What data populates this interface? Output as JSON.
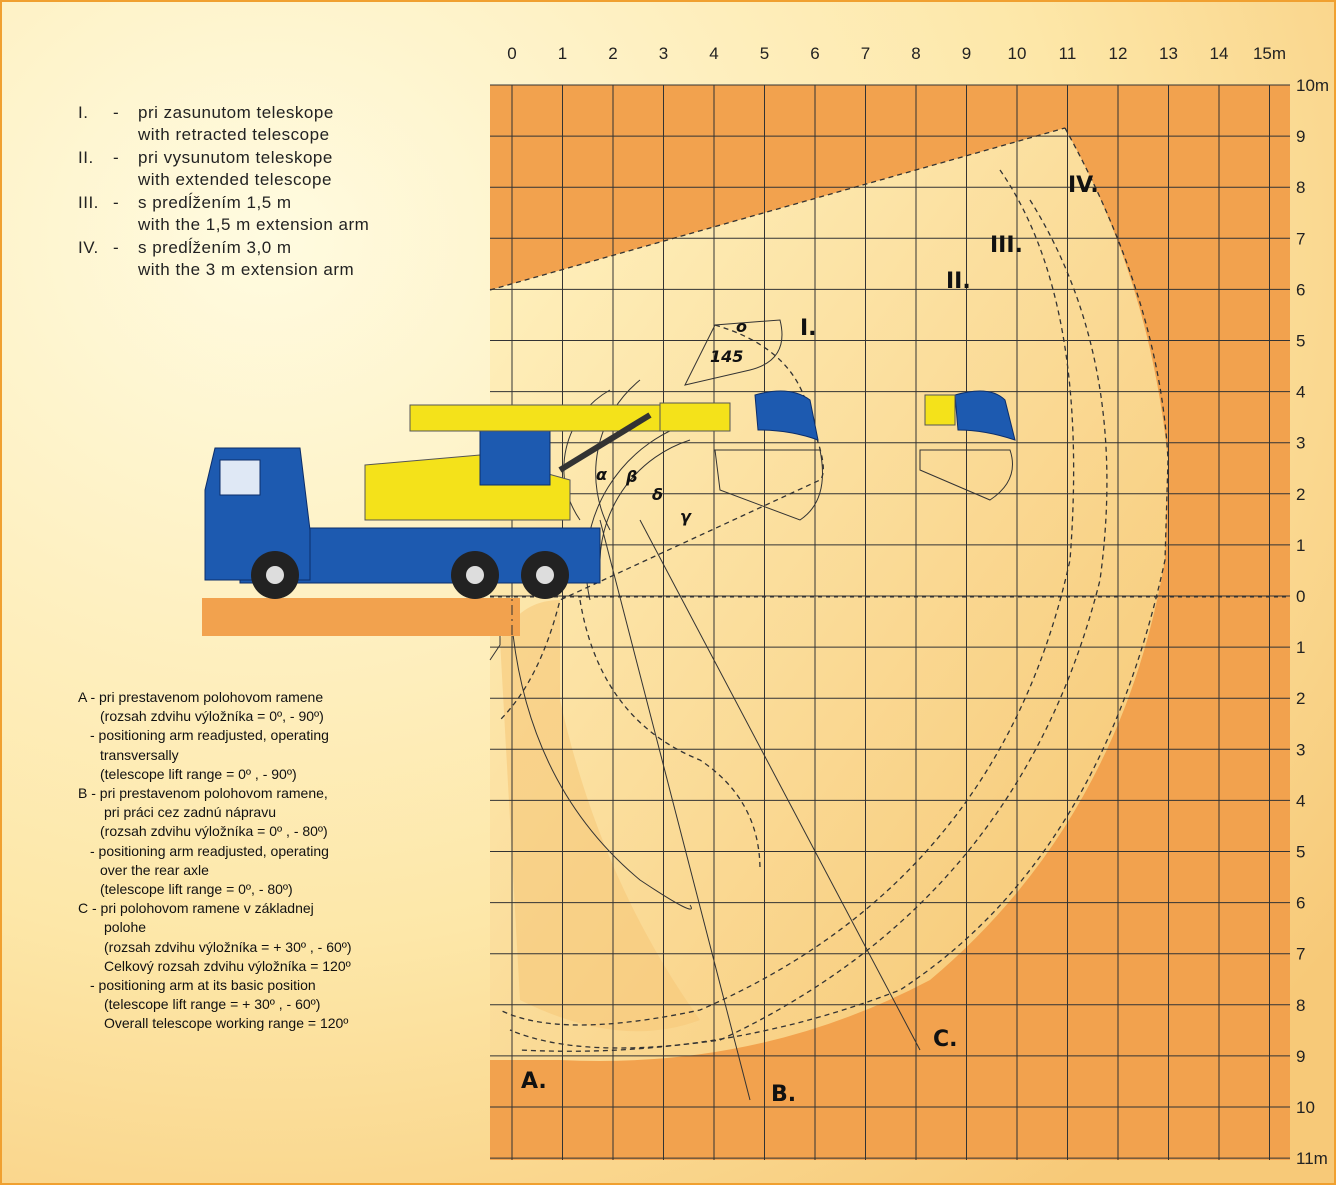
{
  "legend": [
    {
      "num": "I.",
      "sk": "pri zasunutom teleskope",
      "en": "with retracted telescope"
    },
    {
      "num": "II.",
      "sk": "pri vysunutom teleskope",
      "en": "with extended telescope"
    },
    {
      "num": "III.",
      "sk": "s predĺžením 1,5 m",
      "en": "with the 1,5 m extension arm"
    },
    {
      "num": "IV.",
      "sk": "s predĺžením 3,0 m",
      "en": "with the 3 m extension arm"
    }
  ],
  "x_axis": [
    "0",
    "1",
    "2",
    "3",
    "4",
    "5",
    "6",
    "7",
    "8",
    "9",
    "10",
    "11",
    "12",
    "13",
    "14",
    "15m"
  ],
  "y_axis": [
    "10m",
    "9",
    "8",
    "7",
    "6",
    "5",
    "4",
    "3",
    "2",
    "1",
    "0",
    "1",
    "2",
    "3",
    "4",
    "5",
    "6",
    "7",
    "8",
    "9",
    "10",
    "11m"
  ],
  "notes": [
    "A - pri prestavenom polohovom ramene",
    "(rozsah zdvihu výložníka  = 0º, - 90º)",
    "- positioning arm readjusted, operating",
    "transversally",
    "(telescope lift range  = 0º , - 90º)",
    "B - pri prestavenom polohovom ramene,",
    "pri práci cez zadnú nápravu",
    "(rozsah zdvihu výložníka  = 0º , - 80º)",
    "- positioning arm readjusted, operating",
    "over the rear axle",
    "(telescope lift range  = 0º, - 80º)",
    "C - pri polohovom ramene v základnej",
    "polohe",
    "(rozsah zdvihu výložníka  = + 30º , - 60º)",
    "Celkový rozsah zdvihu výložníka  = 120º",
    "- positioning arm at its basic position",
    "(telescope lift range  = + 30º , - 60º)",
    "Overall telescope working range  = 120º"
  ],
  "diagram_labels": {
    "range_1": "I.",
    "range_2": "II.",
    "range_3": "III.",
    "range_4": "IV.",
    "position_a": "A.",
    "position_b": "B.",
    "position_c": "C.",
    "angle": "145",
    "degree": "o",
    "alpha": "α",
    "beta": "β",
    "delta": "δ",
    "gamma": "γ"
  }
}
